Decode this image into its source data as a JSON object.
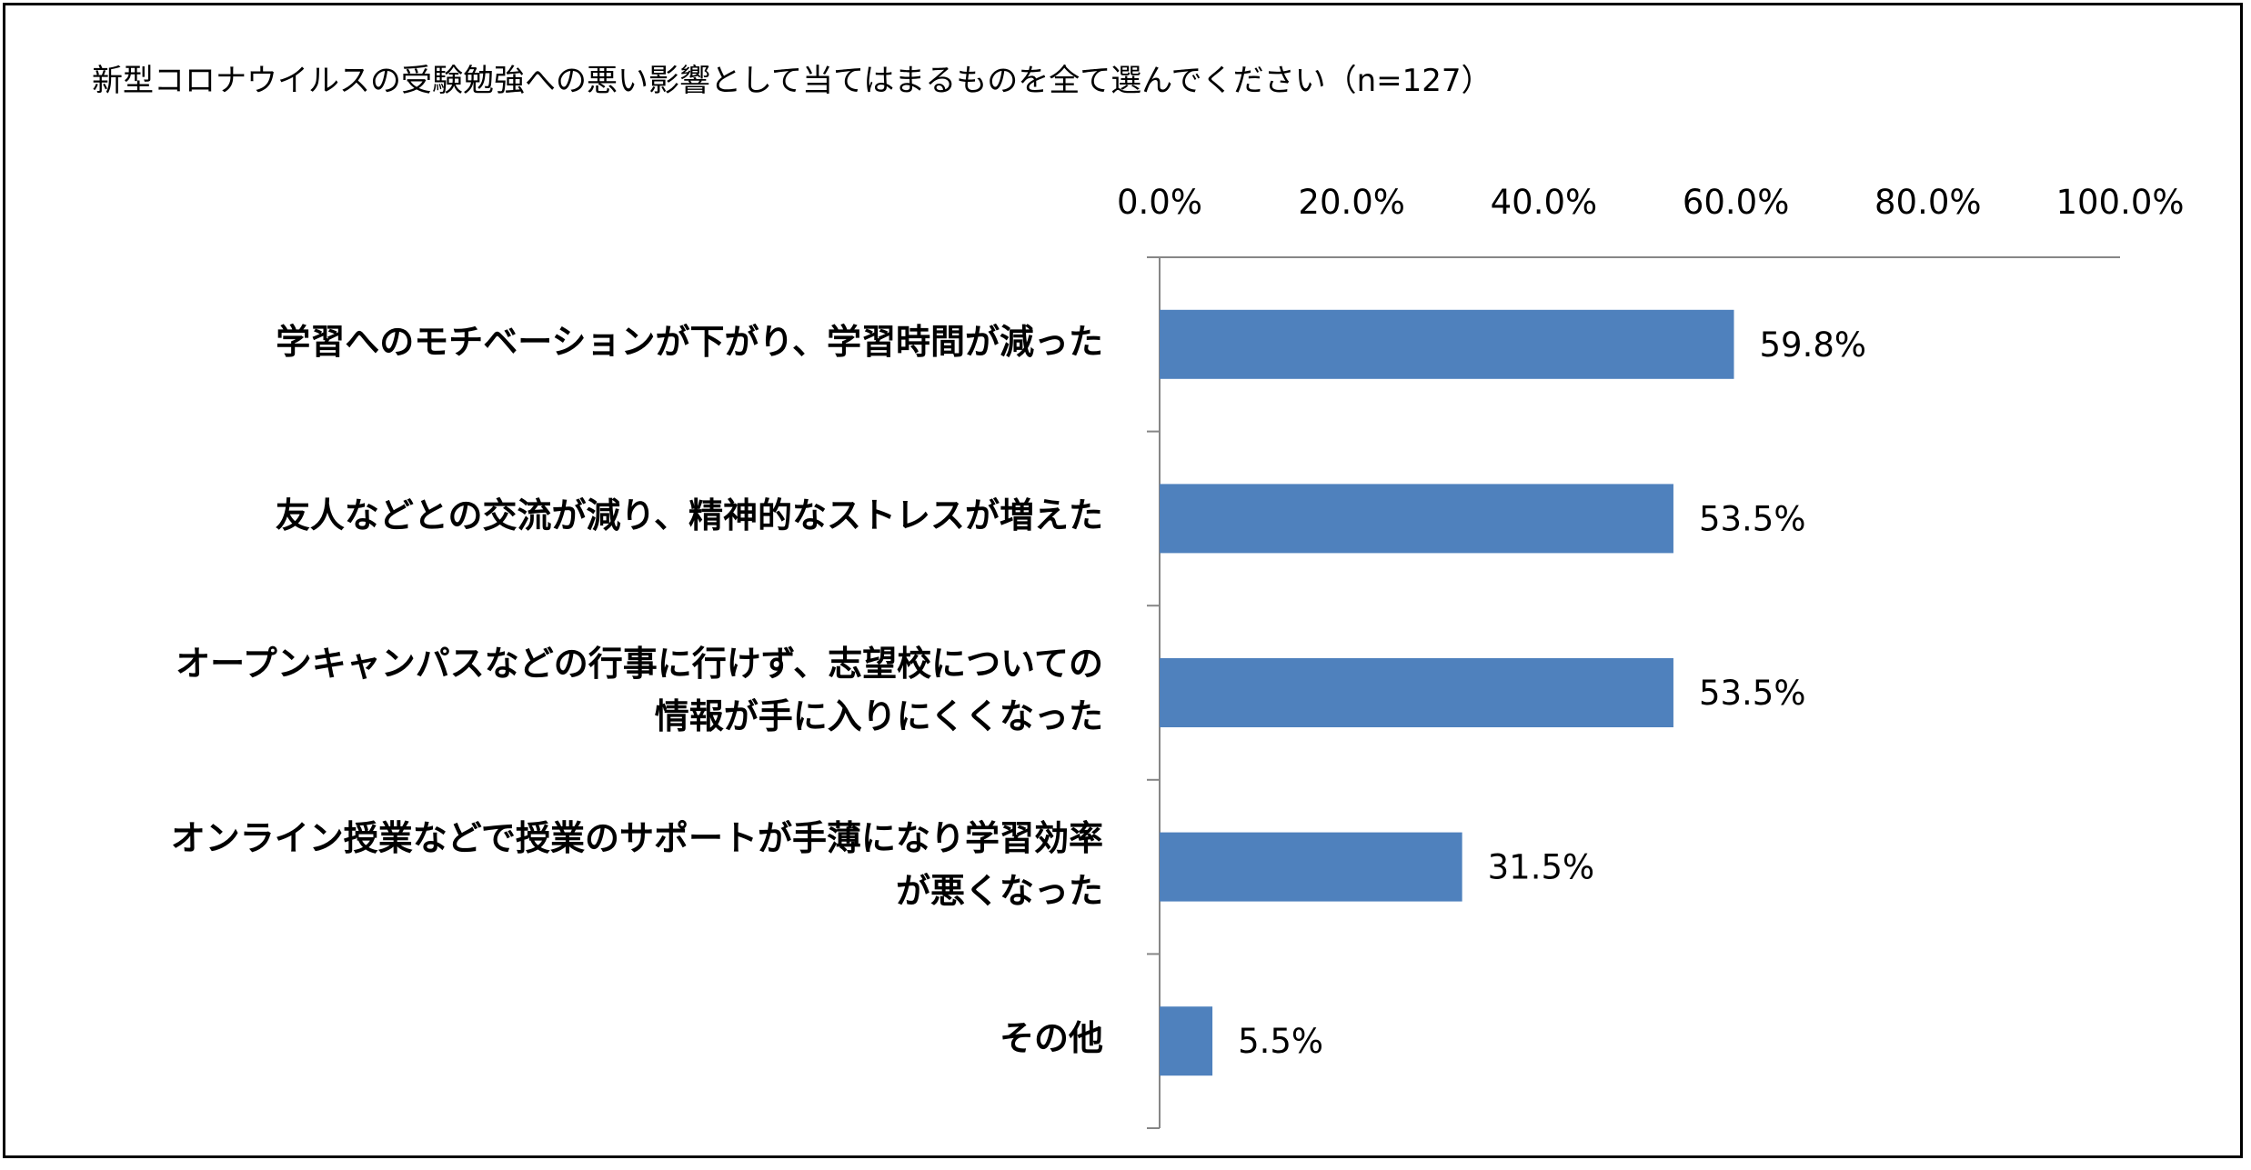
{
  "chart_data": {
    "type": "bar",
    "orientation": "horizontal",
    "title": "新型コロナウイルスの受験勉強への悪い影響として当てはまるものを全て選んでください（n=127）",
    "categories": [
      "学習へのモチベーションが下がり、学習時間が減った",
      "友人などとの交流が減り、精神的なストレスが増えた",
      "オープンキャンパスなどの行事に行けず、志望校についての\n情報が手に入りにくくなった",
      "オンライン授業などで授業のサポートが手薄になり学習効率\nが悪くなった",
      "その他"
    ],
    "values": [
      59.8,
      53.5,
      53.5,
      31.5,
      5.5
    ],
    "data_labels": [
      "59.8%",
      "53.5%",
      "53.5%",
      "31.5%",
      "5.5%"
    ],
    "xlim": [
      0,
      100
    ],
    "x_ticks": [
      "0.0%",
      "20.0%",
      "40.0%",
      "60.0%",
      "80.0%",
      "100.0%"
    ],
    "x_axis_position": "top",
    "grid": false,
    "legend": "none",
    "bar_color": "#4F81BD"
  }
}
